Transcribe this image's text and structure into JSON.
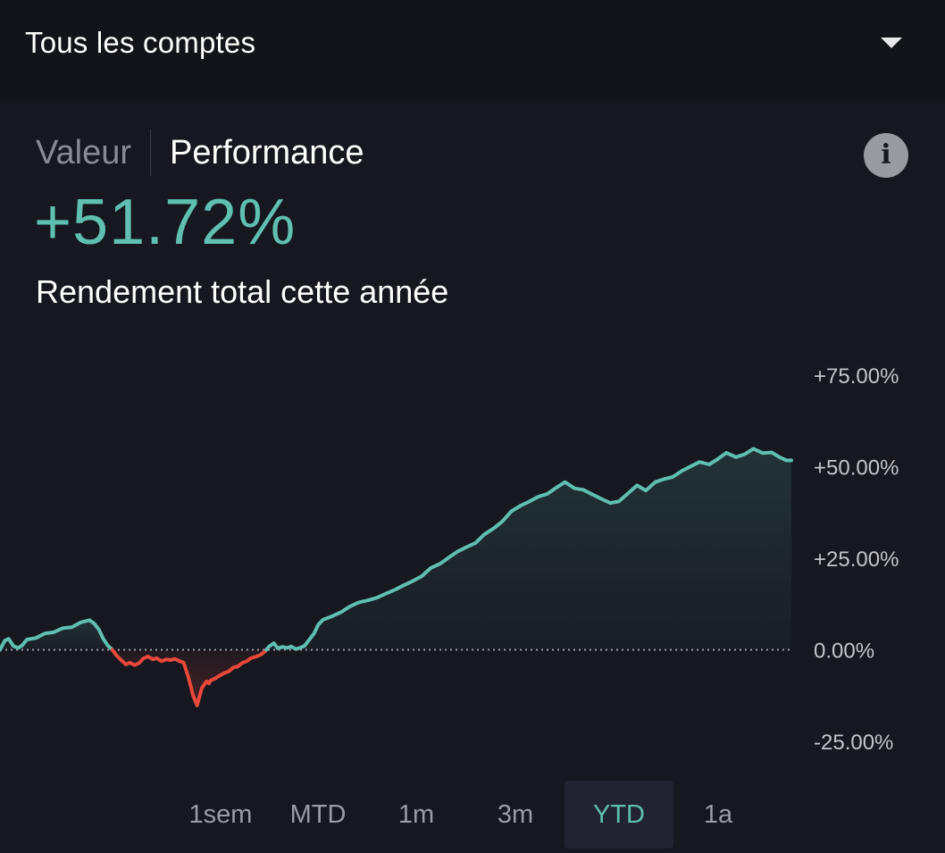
{
  "account_selector": {
    "label": "Tous les comptes",
    "icon": "chevron-down-icon"
  },
  "view_tabs": [
    {
      "label": "Valeur",
      "active": false
    },
    {
      "label": "Performance",
      "active": true
    }
  ],
  "info_button": {
    "icon": "info-icon",
    "glyph": "i"
  },
  "performance": {
    "value": "+51.72%",
    "caption": "Rendement total cette année"
  },
  "range_tabs": [
    {
      "label": "1sem",
      "selected": false
    },
    {
      "label": "MTD",
      "selected": false
    },
    {
      "label": "1m",
      "selected": false
    },
    {
      "label": "3m",
      "selected": false
    },
    {
      "label": "YTD",
      "selected": true
    },
    {
      "label": "1a",
      "selected": false
    }
  ],
  "colors": {
    "positive": "#5fbfb0",
    "negative": "#e8483a",
    "background": "#16171f",
    "baseline": "#9a9ba3"
  },
  "chart_data": {
    "type": "area",
    "title": "",
    "xlabel": "",
    "ylabel": "",
    "y_unit": "%",
    "ylim": [
      -25,
      75
    ],
    "yticks": [
      75,
      50,
      25,
      0,
      -25
    ],
    "ytick_labels": [
      "+75.00%",
      "+50.00%",
      "+25.00%",
      "0.00%",
      "-25.00%"
    ],
    "baseline": 0,
    "baseline_style": "dotted",
    "grid": false,
    "x_start": 0,
    "x_end": 1,
    "series": [
      {
        "x": [
          0,
          0.006,
          0.011,
          0.017,
          0.023,
          0.028,
          0.034,
          0.045,
          0.057,
          0.068,
          0.079,
          0.091,
          0.102,
          0.113,
          0.119,
          0.125,
          0.13,
          0.136,
          0.142,
          0.147,
          0.153,
          0.159,
          0.164,
          0.17,
          0.176,
          0.181,
          0.187,
          0.193,
          0.198,
          0.204,
          0.21,
          0.215,
          0.221,
          0.227,
          0.232,
          0.238,
          0.244,
          0.249,
          0.255,
          0.261,
          0.264,
          0.266,
          0.272,
          0.278,
          0.283,
          0.289,
          0.295,
          0.3,
          0.306,
          0.312,
          0.317,
          0.323,
          0.329,
          0.334,
          0.34,
          0.346,
          0.351,
          0.357,
          0.363,
          0.368,
          0.374,
          0.38,
          0.385,
          0.391,
          0.397,
          0.402,
          0.408,
          0.419,
          0.431,
          0.442,
          0.453,
          0.465,
          0.476,
          0.487,
          0.499,
          0.51,
          0.521,
          0.533,
          0.544,
          0.556,
          0.567,
          0.578,
          0.59,
          0.601,
          0.612,
          0.624,
          0.635,
          0.646,
          0.658,
          0.669,
          0.68,
          0.692,
          0.703,
          0.714,
          0.726,
          0.737,
          0.748,
          0.76,
          0.771,
          0.782,
          0.794,
          0.805,
          0.816,
          0.828,
          0.839,
          0.85,
          0.862,
          0.873,
          0.884,
          0.896,
          0.907,
          0.918,
          0.93,
          0.941,
          0.952,
          0.964,
          0.975,
          0.986,
          0.994,
          1
        ],
        "y": [
          0,
          2.5,
          3,
          1,
          0.5,
          1.2,
          2.8,
          3.2,
          4.5,
          4.8,
          5.9,
          6.2,
          7.5,
          8.1,
          7.2,
          5.5,
          3.2,
          1.2,
          0,
          -1.5,
          -2.8,
          -4,
          -3.5,
          -4.2,
          -3.6,
          -2.4,
          -1.8,
          -2.6,
          -2.3,
          -3.1,
          -2.6,
          -2.8,
          -2.5,
          -3.1,
          -3.5,
          -7.5,
          -12.5,
          -15.2,
          -10.5,
          -8.6,
          -9.2,
          -8.4,
          -7.8,
          -7,
          -6.4,
          -5.9,
          -4.8,
          -4.6,
          -3.6,
          -3.1,
          -2.3,
          -1.9,
          -1.4,
          -0.6,
          0.9,
          1.8,
          0.4,
          0.8,
          0.5,
          0.9,
          0.2,
          0.6,
          1.1,
          2.8,
          4.5,
          6.8,
          8.2,
          9.1,
          10.3,
          11.8,
          12.9,
          13.5,
          14.2,
          15.3,
          16.4,
          17.6,
          18.7,
          20.1,
          22.3,
          23.5,
          25.2,
          26.8,
          28.1,
          29.2,
          31.5,
          33.2,
          35.1,
          37.8,
          39.4,
          40.5,
          41.8,
          42.6,
          44.3,
          45.8,
          44.1,
          43.7,
          42.5,
          41.2,
          40.1,
          40.5,
          42.8,
          44.9,
          43.5,
          45.8,
          46.6,
          47.2,
          48.9,
          50.1,
          51.3,
          50.6,
          52.1,
          53.8,
          52.6,
          53.4,
          54.9,
          53.7,
          53.9,
          52.5,
          51.7,
          51.72
        ]
      }
    ]
  }
}
